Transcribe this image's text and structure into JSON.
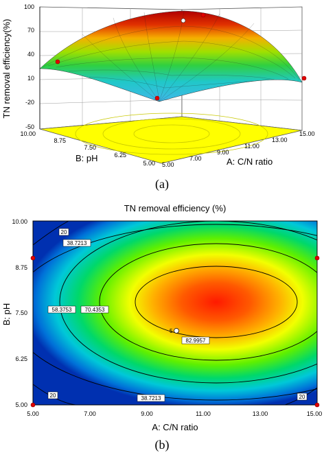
{
  "chart_data": [
    {
      "panel": "a",
      "type": "surface",
      "caption": "(a)",
      "zlabel": "TN removal efficiency(%)",
      "xlabel": "A: C/N ratio",
      "ylabel": "B: pH",
      "x_ticks": [
        "5.00",
        "7.00",
        "9.00",
        "11.00",
        "13.00",
        "15.00"
      ],
      "y_ticks": [
        "5.00",
        "6.25",
        "7.50",
        "8.75",
        "10.00"
      ],
      "z_ticks": [
        "-50",
        "-20",
        "10",
        "40",
        "70",
        "100"
      ],
      "xlim": [
        5,
        15
      ],
      "ylim": [
        5,
        10
      ],
      "zlim": [
        -50,
        100
      ],
      "surface_peak_z": 86,
      "design_points": [
        {
          "x": 5,
          "y": 9,
          "z": 23
        },
        {
          "x": 15,
          "y": 9,
          "z": 21
        },
        {
          "x": 10,
          "y": 5,
          "z": 6
        },
        {
          "x": 10,
          "y": 10,
          "z": 15
        },
        {
          "x": 10,
          "y": 7.2,
          "z": 85
        }
      ]
    },
    {
      "panel": "b",
      "type": "contour",
      "caption": "(b)",
      "title": "TN removal efficiency (%)",
      "xlabel": "A: C/N ratio",
      "ylabel": "B: pH",
      "x_ticks": [
        "5.00",
        "7.00",
        "9.00",
        "11.00",
        "13.00",
        "15.00"
      ],
      "y_ticks": [
        "5.00",
        "6.25",
        "7.50",
        "8.75",
        "10.00"
      ],
      "xlim": [
        5,
        15
      ],
      "ylim": [
        5,
        10
      ],
      "contour_levels": [
        "20",
        "38.7213",
        "58.3753",
        "70.4353",
        "82.9957"
      ],
      "center_point_label": "5",
      "design_points": [
        {
          "x": 5,
          "y": 9
        },
        {
          "x": 15,
          "y": 9
        },
        {
          "x": 5,
          "y": 5
        },
        {
          "x": 15,
          "y": 5
        },
        {
          "x": 10,
          "y": 7.2
        }
      ]
    }
  ]
}
